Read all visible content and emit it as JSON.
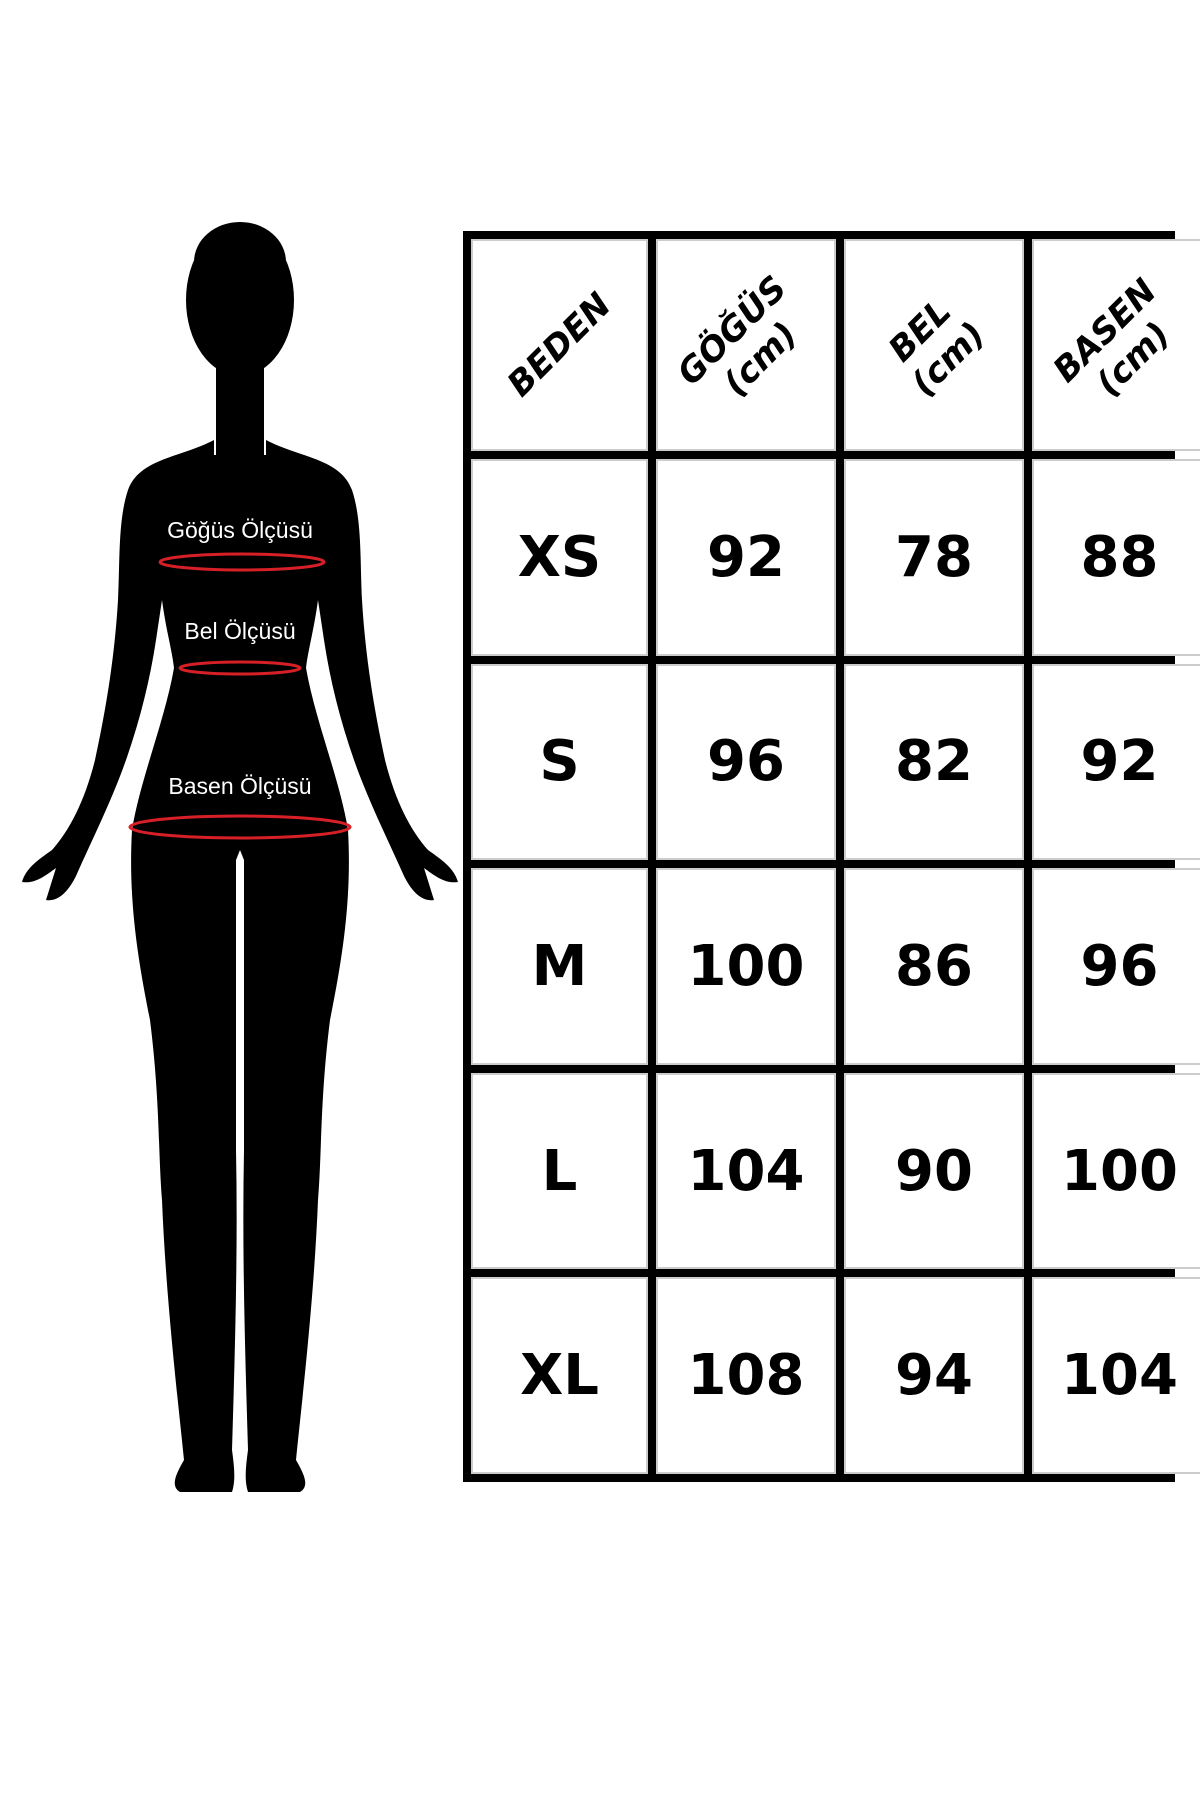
{
  "figure": {
    "labels": {
      "chest": "Göğüs Ölçüsü",
      "waist": "Bel Ölçüsü",
      "hip": "Basen Ölçüsü"
    },
    "measure_line_color": "#d61f26",
    "silhouette_color": "#000000"
  },
  "table": {
    "headers": [
      {
        "name": "BEDEN",
        "unit": ""
      },
      {
        "name": "GÖĞÜS",
        "unit": "(cm)"
      },
      {
        "name": "BEL",
        "unit": "(cm)"
      },
      {
        "name": "BASEN",
        "unit": "(cm)"
      }
    ],
    "rows": [
      [
        "XS",
        "92",
        "78",
        "88"
      ],
      [
        "S",
        "96",
        "82",
        "92"
      ],
      [
        "M",
        "100",
        "86",
        "96"
      ],
      [
        "L",
        "104",
        "90",
        "100"
      ],
      [
        "XL",
        "108",
        "94",
        "104"
      ]
    ]
  }
}
